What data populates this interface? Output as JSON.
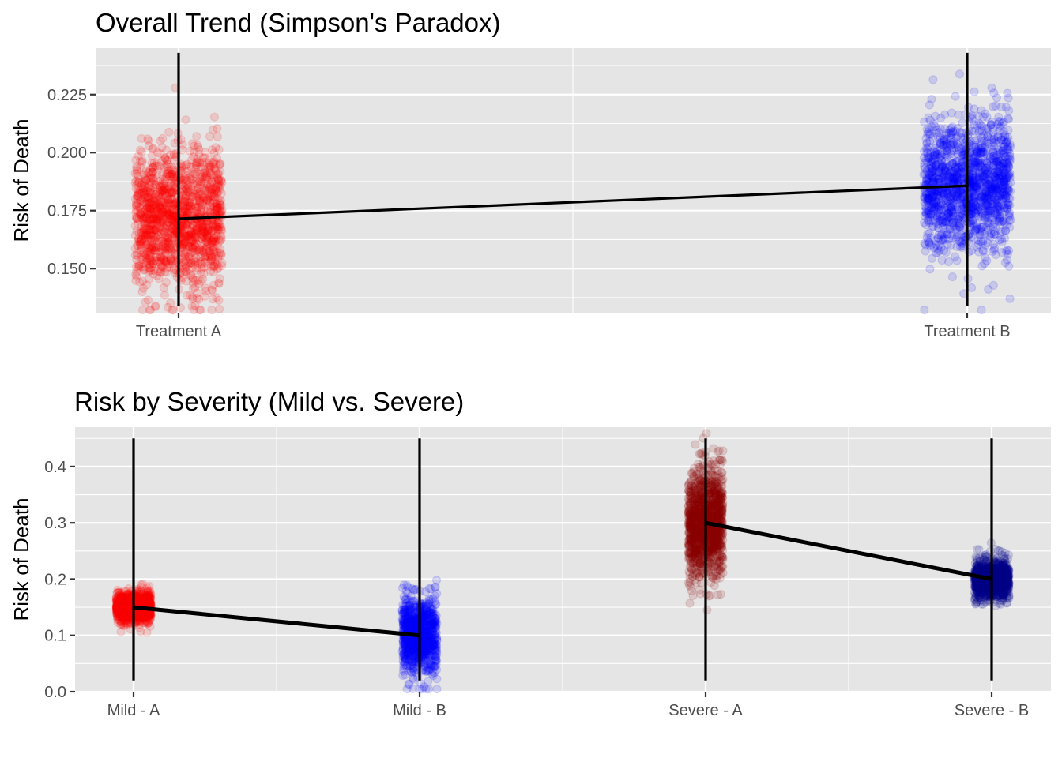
{
  "chart_data": [
    {
      "type": "scatter",
      "title": "Overall Trend (Simpson's Paradox)",
      "ylabel": "Risk of Death",
      "categories": [
        "Treatment A",
        "Treatment B"
      ],
      "ylim": [
        0.131,
        0.245
      ],
      "yticks": [
        "0.150",
        "0.175",
        "0.200",
        "0.225"
      ],
      "grid": true,
      "series": [
        {
          "category": "Treatment A",
          "color": "#ff0000",
          "mean": 0.1715,
          "sd": 0.0145,
          "n": 1500,
          "y_min": 0.134,
          "y_max": 0.243
        },
        {
          "category": "Treatment B",
          "color": "#0000ff",
          "mean": 0.1857,
          "sd": 0.0145,
          "n": 1500,
          "y_min": 0.134,
          "y_max": 0.243
        }
      ]
    },
    {
      "type": "scatter",
      "title": "Risk by Severity (Mild vs. Severe)",
      "ylabel": "Risk of Death",
      "categories": [
        "Mild - A",
        "Mild - B",
        "Severe - A",
        "Severe - B"
      ],
      "ylim": [
        0,
        0.47
      ],
      "yticks": [
        "0.0",
        "0.1",
        "0.2",
        "0.3",
        "0.4"
      ],
      "grid": true,
      "series": [
        {
          "category": "Mild - A",
          "color": "#ff0000",
          "mean": 0.15,
          "sd": 0.013,
          "n": 1200,
          "y_min": 0.02,
          "y_max": 0.45
        },
        {
          "category": "Mild - B",
          "color": "#0000ff",
          "mean": 0.1,
          "sd": 0.035,
          "n": 900,
          "y_min": 0.02,
          "y_max": 0.45
        },
        {
          "category": "Severe - A",
          "color": "#8b0000",
          "mean": 0.3,
          "sd": 0.048,
          "n": 1200,
          "y_min": 0.02,
          "y_max": 0.45
        },
        {
          "category": "Severe - B",
          "color": "#00008b",
          "mean": 0.2,
          "sd": 0.017,
          "n": 1200,
          "y_min": 0.02,
          "y_max": 0.45
        }
      ]
    }
  ]
}
